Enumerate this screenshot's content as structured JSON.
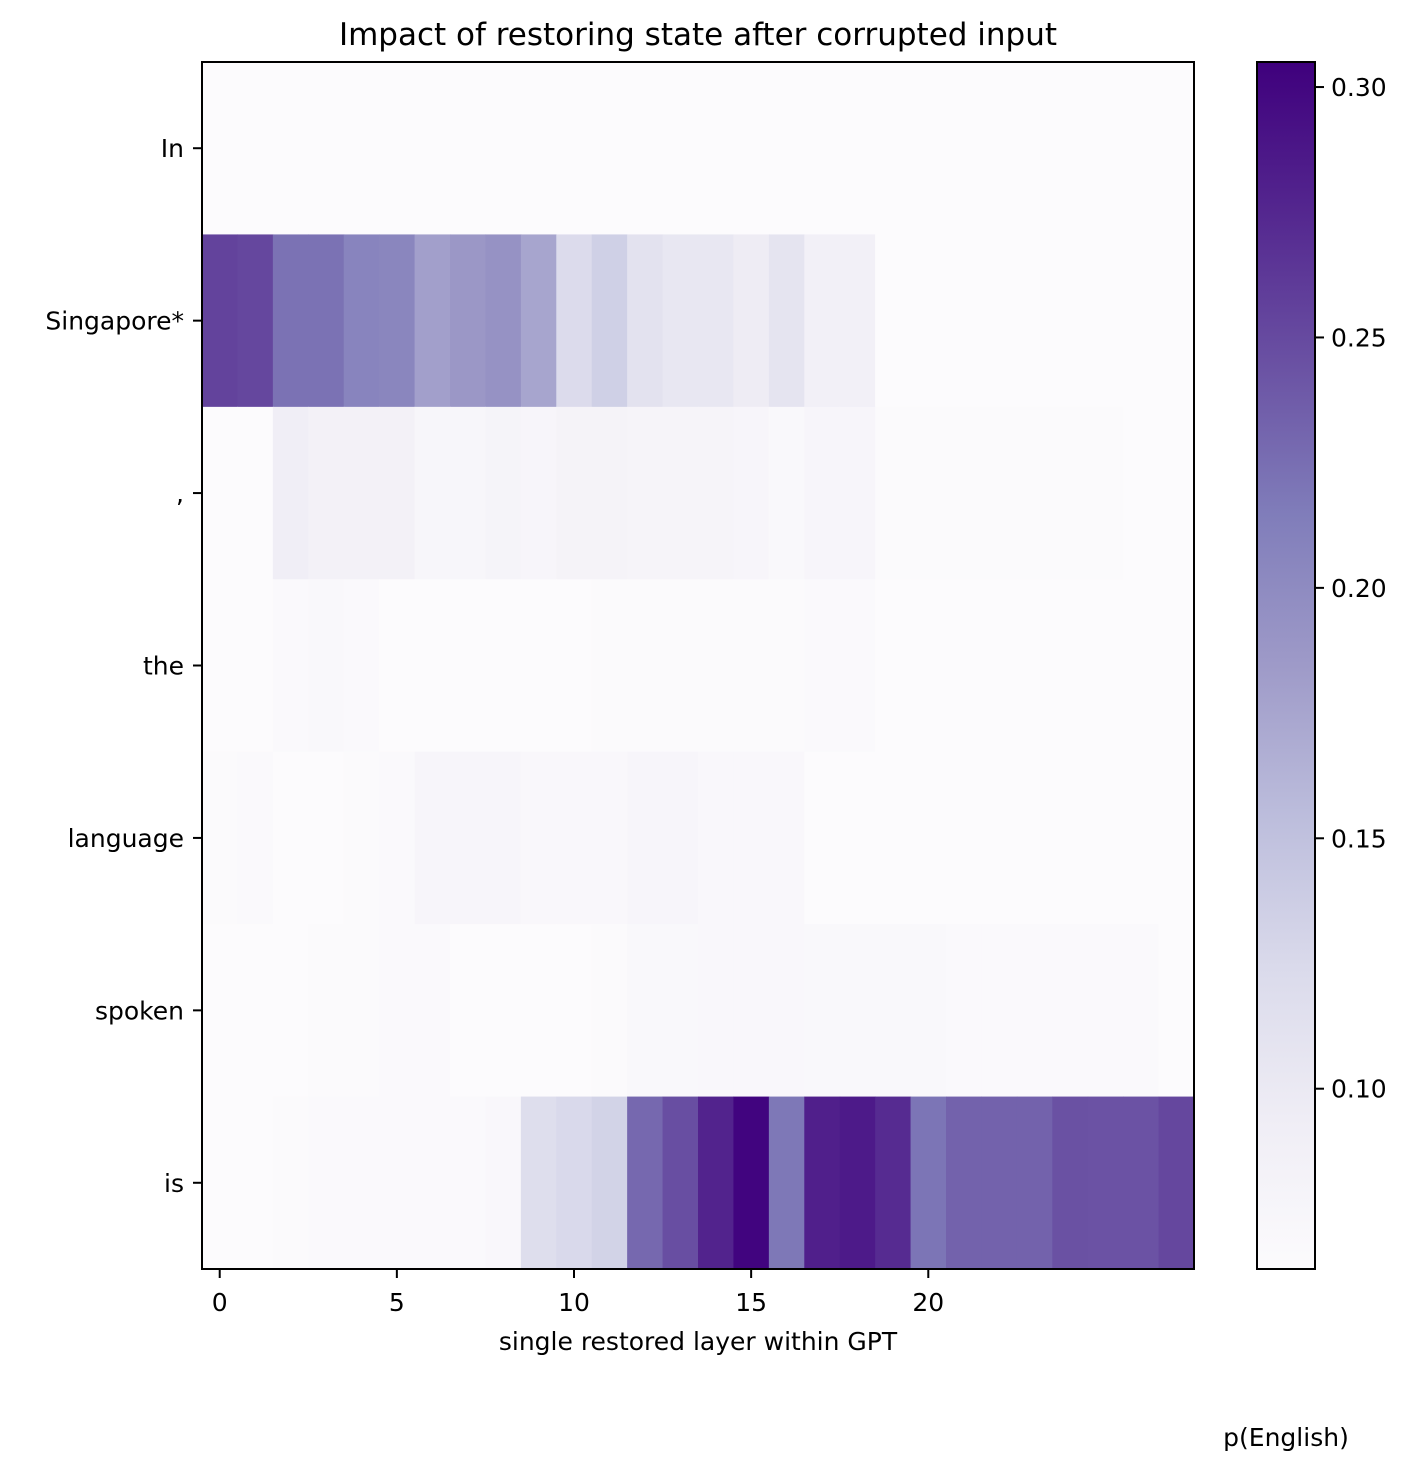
{
  "chart_data": {
    "type": "heatmap",
    "title": "Impact of restoring state after corrupted input",
    "xlabel": "single restored layer within GPT",
    "ylabel": "",
    "x": [
      0,
      1,
      2,
      3,
      4,
      5,
      6,
      7,
      8,
      9,
      10,
      11,
      12,
      13,
      14,
      15,
      16,
      17,
      18,
      19,
      20,
      21,
      22,
      23,
      24,
      25,
      26,
      27
    ],
    "x_ticks": [
      0,
      5,
      10,
      15,
      20
    ],
    "x_tick_labels": [
      "0",
      "5",
      "10",
      "15",
      "20"
    ],
    "rows": [
      "In",
      "Singapore*",
      ",",
      "the",
      "language",
      "spoken",
      "is"
    ],
    "values": [
      [
        0.064,
        0.064,
        0.064,
        0.064,
        0.064,
        0.064,
        0.064,
        0.064,
        0.064,
        0.064,
        0.064,
        0.064,
        0.064,
        0.064,
        0.064,
        0.064,
        0.064,
        0.064,
        0.064,
        0.064,
        0.064,
        0.064,
        0.064,
        0.064,
        0.064,
        0.064,
        0.064,
        0.064
      ],
      [
        0.255,
        0.252,
        0.222,
        0.222,
        0.207,
        0.205,
        0.18,
        0.188,
        0.193,
        0.175,
        0.122,
        0.135,
        0.112,
        0.104,
        0.104,
        0.096,
        0.108,
        0.088,
        0.088,
        0.064,
        0.064,
        0.064,
        0.064,
        0.064,
        0.064,
        0.064,
        0.064,
        0.064
      ],
      [
        0.064,
        0.064,
        0.092,
        0.086,
        0.086,
        0.086,
        0.075,
        0.075,
        0.08,
        0.076,
        0.081,
        0.081,
        0.079,
        0.079,
        0.079,
        0.076,
        0.07,
        0.076,
        0.076,
        0.066,
        0.066,
        0.066,
        0.066,
        0.066,
        0.066,
        0.066,
        0.064,
        0.064
      ],
      [
        0.064,
        0.064,
        0.069,
        0.071,
        0.068,
        0.064,
        0.064,
        0.064,
        0.064,
        0.064,
        0.064,
        0.066,
        0.066,
        0.066,
        0.066,
        0.066,
        0.066,
        0.068,
        0.068,
        0.064,
        0.064,
        0.064,
        0.064,
        0.064,
        0.064,
        0.064,
        0.064,
        0.064
      ],
      [
        0.066,
        0.068,
        0.064,
        0.064,
        0.066,
        0.068,
        0.076,
        0.076,
        0.076,
        0.072,
        0.072,
        0.072,
        0.076,
        0.076,
        0.072,
        0.072,
        0.072,
        0.064,
        0.064,
        0.064,
        0.064,
        0.064,
        0.064,
        0.064,
        0.064,
        0.064,
        0.064,
        0.064
      ],
      [
        0.064,
        0.064,
        0.064,
        0.066,
        0.066,
        0.068,
        0.068,
        0.064,
        0.064,
        0.064,
        0.064,
        0.066,
        0.07,
        0.07,
        0.072,
        0.072,
        0.072,
        0.07,
        0.07,
        0.07,
        0.07,
        0.068,
        0.068,
        0.068,
        0.068,
        0.068,
        0.068,
        0.064
      ],
      [
        0.064,
        0.064,
        0.066,
        0.068,
        0.068,
        0.068,
        0.068,
        0.068,
        0.072,
        0.118,
        0.125,
        0.132,
        0.229,
        0.247,
        0.278,
        0.302,
        0.218,
        0.281,
        0.285,
        0.272,
        0.22,
        0.233,
        0.233,
        0.233,
        0.245,
        0.244,
        0.244,
        0.252
      ]
    ],
    "vmin": 0.064,
    "vmax": 0.305,
    "colormap": "Purples",
    "colorbar_ticks": [
      0.1,
      0.15,
      0.2,
      0.25,
      0.3
    ],
    "colorbar_tick_labels": [
      "0.10",
      "0.15",
      "0.20",
      "0.25",
      "0.30"
    ],
    "colorbar_label": "p(English)",
    "grid": false
  }
}
